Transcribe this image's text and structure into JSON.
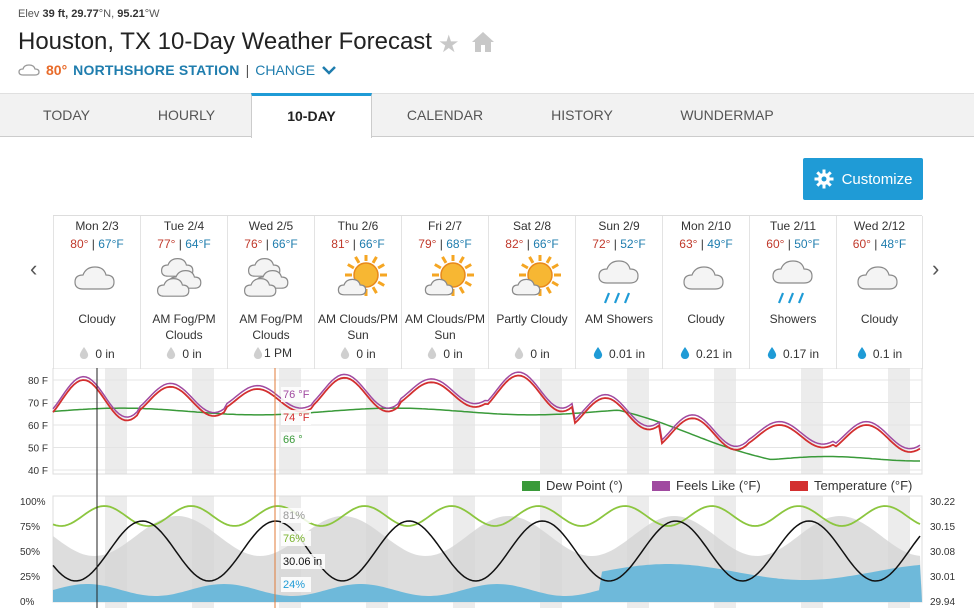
{
  "header": {
    "elev_label": "Elev",
    "elev_value": "39 ft,",
    "lat_value": "29.77",
    "lat_dir": "°N,",
    "lon_value": "95.21",
    "lon_dir": "°W",
    "title": "Houston, TX 10-Day Weather Forecast",
    "station_temp": "80°",
    "station_name": "NORTHSHORE STATION",
    "separator": "|",
    "change_label": "CHANGE"
  },
  "tabs": [
    {
      "label": "TODAY"
    },
    {
      "label": "HOURLY"
    },
    {
      "label": "10-DAY"
    },
    {
      "label": "CALENDAR"
    },
    {
      "label": "HISTORY"
    },
    {
      "label": "WUNDERMAP"
    }
  ],
  "customize_label": "Customize",
  "days": [
    {
      "name": "Mon 2/3",
      "hi": "80°",
      "lo": "67°F",
      "icon": "cloudy",
      "cond": "Cloudy",
      "precip": "0 in",
      "precip_icon": "drop-gray"
    },
    {
      "name": "Tue 2/4",
      "hi": "77°",
      "lo": "64°F",
      "icon": "fog",
      "cond": "AM Fog/PM Clouds",
      "precip": "0 in",
      "precip_icon": "drop-gray"
    },
    {
      "name": "Wed 2/5",
      "hi": "76°",
      "lo": "66°F",
      "icon": "fog",
      "cond": "AM Fog/PM Clouds",
      "precip": "0 in",
      "precip_icon": "drop-gray"
    },
    {
      "name": "Thu 2/6",
      "hi": "81°",
      "lo": "66°F",
      "icon": "partly-sunny",
      "cond": "AM Clouds/PM Sun",
      "precip": "0 in",
      "precip_icon": "drop-gray"
    },
    {
      "name": "Fri 2/7",
      "hi": "79°",
      "lo": "68°F",
      "icon": "partly-sunny",
      "cond": "AM Clouds/PM Sun",
      "precip": "0 in",
      "precip_icon": "drop-gray"
    },
    {
      "name": "Sat 2/8",
      "hi": "82°",
      "lo": "66°F",
      "icon": "partly-sunny",
      "cond": "Partly Cloudy",
      "precip": "0 in",
      "precip_icon": "drop-gray"
    },
    {
      "name": "Sun 2/9",
      "hi": "72°",
      "lo": "52°F",
      "icon": "showers",
      "cond": "AM Showers",
      "precip": "0.01 in",
      "precip_icon": "drop-blue"
    },
    {
      "name": "Mon 2/10",
      "hi": "63°",
      "lo": "49°F",
      "icon": "cloudy",
      "cond": "Cloudy",
      "precip": "0.21 in",
      "precip_icon": "drop-blue"
    },
    {
      "name": "Tue 2/11",
      "hi": "60°",
      "lo": "50°F",
      "icon": "showers",
      "cond": "Showers",
      "precip": "0.17 in",
      "precip_icon": "drop-blue"
    },
    {
      "name": "Wed 2/12",
      "hi": "60°",
      "lo": "48°F",
      "icon": "cloudy",
      "cond": "Cloudy",
      "precip": "0.1 in",
      "precip_icon": "drop-blue"
    }
  ],
  "hover_time": "1 PM",
  "temp_chart": {
    "y_ticks": [
      "80 F",
      "70 F",
      "60 F",
      "50 F",
      "40 F"
    ],
    "readout_feels": "76 °F",
    "readout_temp": "74 °F",
    "readout_dew": "66 °",
    "legend": [
      {
        "label": "Dew Point (°)",
        "color": "#3a9a3a"
      },
      {
        "label": "Feels Like (°F)",
        "color": "#a04aa0"
      },
      {
        "label": "Temperature (°F)",
        "color": "#d32f2f"
      }
    ]
  },
  "humidity_chart": {
    "left_ticks": [
      "100%",
      "75%",
      "50%",
      "25%",
      "0%"
    ],
    "right_ticks": [
      "30.22",
      "30.15",
      "30.08",
      "30.01",
      "29.94"
    ],
    "readout_cloud": "81%",
    "readout_humidity": "76%",
    "readout_pressure": "30.06 in",
    "readout_precip": "24%"
  },
  "colors": {
    "accent": "#1f9bd6",
    "link": "#1f7dae",
    "temp": "#d32f2f",
    "feels": "#a04aa0",
    "dew": "#3a9a3a",
    "humidity": "#8cc63f",
    "pressure": "#111111",
    "precip_area": "#5bb3d9"
  }
}
